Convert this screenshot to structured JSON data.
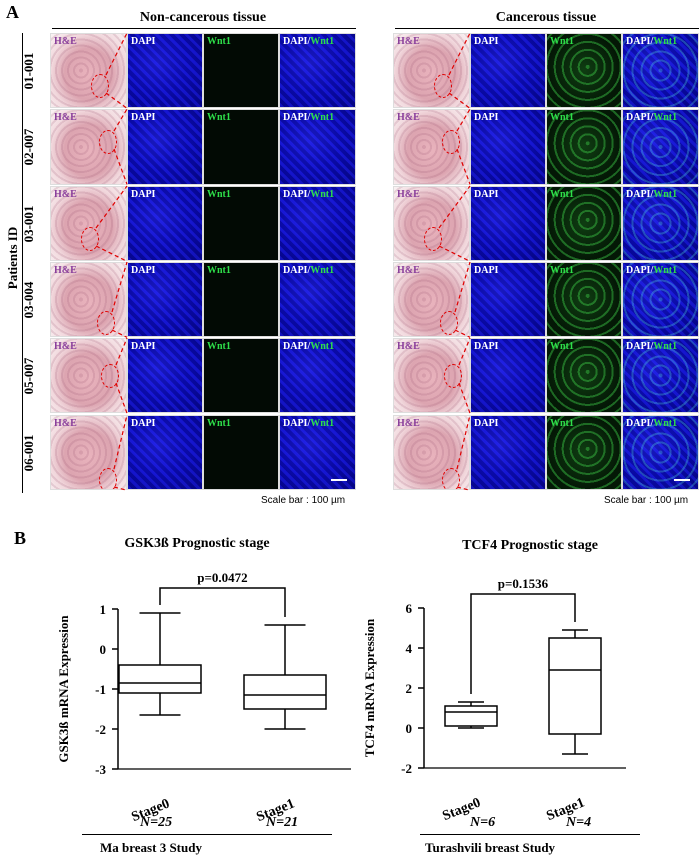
{
  "panel_a": {
    "letter": "A",
    "y_axis_label": "Patients ID",
    "groups": [
      {
        "title": "Non-cancerous tissue",
        "wnt_on": false
      },
      {
        "title": "Cancerous tissue",
        "wnt_on": true
      }
    ],
    "channel_labels": {
      "he": "H&E",
      "dapi": "DAPI",
      "wnt": "Wnt1",
      "merge_prefix": "DAPI/",
      "merge_suffix": "Wnt1"
    },
    "patients": [
      "01-001",
      "02-007",
      "03-001",
      "03-004",
      "05-007",
      "06-001"
    ],
    "scale_bar_text": "Scale bar : 100 µm"
  },
  "panel_b": {
    "letter": "B",
    "charts": [
      {
        "title": "GSK3ß  Prognostic stage",
        "ylabel": "GSK3ß  mRNA Expression",
        "p_value": "p=0.0472",
        "study": "Ma breast 3 Study",
        "ns": [
          "N=25",
          "N=21"
        ]
      },
      {
        "title": "TCF4 Prognostic stage",
        "ylabel": "TCF4 mRNA Expression",
        "p_value": "p=0.1536",
        "study": "Turashvili breast Study",
        "ns": [
          "N=6",
          "N=4"
        ]
      }
    ]
  },
  "chart_data": [
    {
      "type": "box",
      "title": "GSK3ß  Prognostic stage",
      "ylabel": "GSK3ß  mRNA Expression",
      "ylim": [
        -3,
        1
      ],
      "yticks": [
        1,
        0,
        -1,
        -2,
        -3
      ],
      "categories": [
        "Stage0",
        "Stage1"
      ],
      "boxes": [
        {
          "min": -1.65,
          "q1": -1.1,
          "median": -0.85,
          "q3": -0.4,
          "max": 0.9
        },
        {
          "min": -2.0,
          "q1": -1.5,
          "median": -1.15,
          "q3": -0.65,
          "max": 0.6
        }
      ],
      "annotation": "p=0.0472"
    },
    {
      "type": "box",
      "title": "TCF4 Prognostic stage",
      "ylabel": "TCF4 mRNA Expression",
      "ylim": [
        -2,
        6
      ],
      "yticks": [
        6,
        4,
        2,
        0,
        -2
      ],
      "categories": [
        "Stage0",
        "Stage1"
      ],
      "boxes": [
        {
          "min": 0.0,
          "q1": 0.1,
          "median": 0.8,
          "q3": 1.1,
          "max": 1.3
        },
        {
          "min": -1.3,
          "q1": -0.3,
          "median": 2.9,
          "q3": 4.5,
          "max": 4.9
        }
      ],
      "annotation": "p=0.1536"
    }
  ]
}
